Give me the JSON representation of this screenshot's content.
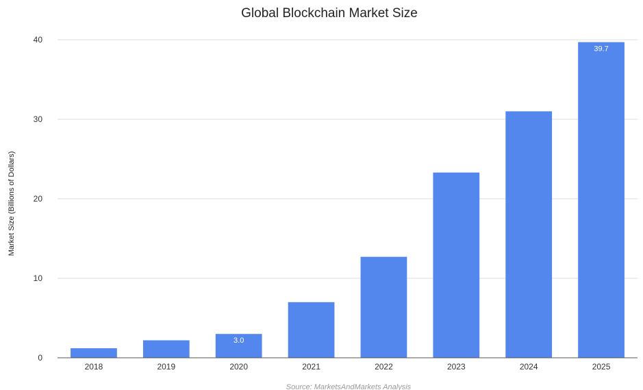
{
  "chart_data": {
    "type": "bar",
    "title": "Global Blockchain Market Size",
    "xlabel": "",
    "ylabel": "Market Size (Billions of Dollars)",
    "categories": [
      "2018",
      "2019",
      "2020",
      "2021",
      "2022",
      "2023",
      "2024",
      "2025"
    ],
    "values": [
      1.2,
      2.2,
      3.0,
      7.0,
      12.7,
      23.3,
      31.0,
      39.7
    ],
    "data_labels": [
      {
        "category": "2020",
        "text": "3.0"
      },
      {
        "category": "2025",
        "text": "39.7"
      }
    ],
    "ylim": [
      0,
      40
    ],
    "yticks": [
      0,
      10,
      20,
      30,
      40
    ],
    "grid": true,
    "legend": "none",
    "bar_color": "#5487ee",
    "source": "Source: MarketsAndMarkets Analysis"
  }
}
